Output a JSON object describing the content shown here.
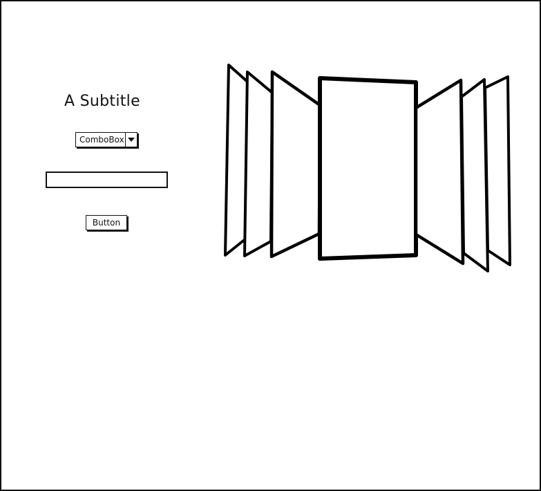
{
  "subtitle": "A Subtitle",
  "combobox": {
    "value": "ComboBox",
    "arrow_icon": "triangle-down-icon"
  },
  "text_input": {
    "value": "",
    "placeholder": ""
  },
  "button": {
    "label": "Button"
  },
  "cover_flow": {
    "item_count": 7,
    "selected_index": 3
  }
}
